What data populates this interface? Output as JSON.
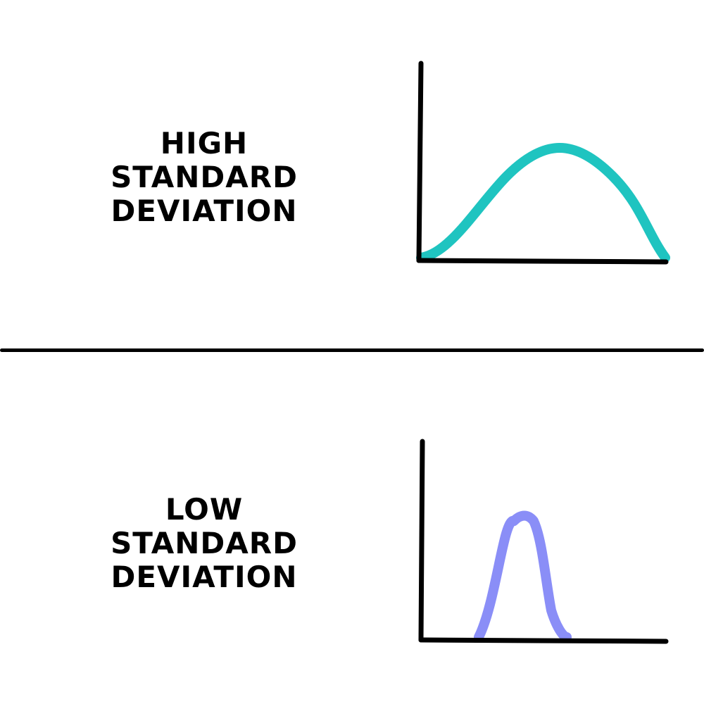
{
  "panels": [
    {
      "label_line1": "HIGH",
      "label_line2": "STANDARD DEVIATION",
      "curve_color": "#1fc4c0",
      "curve_spread": "wide"
    },
    {
      "label_line1": "LOW",
      "label_line2": "STANDARD DEVIATION",
      "curve_color": "#8a8ef7",
      "curve_spread": "narrow"
    }
  ],
  "colors": {
    "axis": "#000000",
    "divider": "#000000",
    "background": "#ffffff"
  }
}
